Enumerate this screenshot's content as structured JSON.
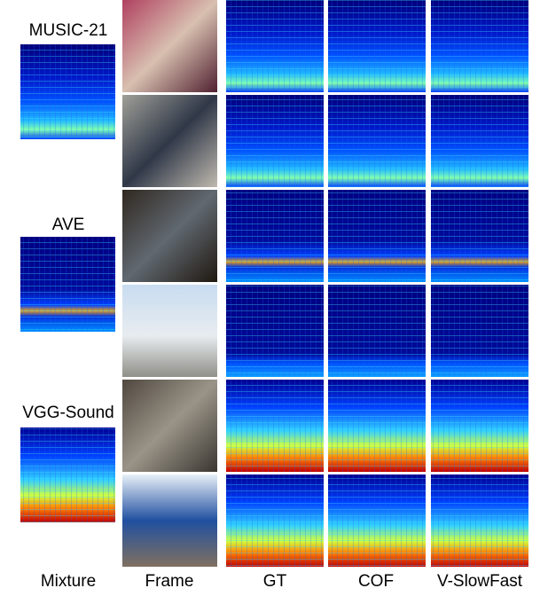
{
  "figure": {
    "datasets": [
      "MUSIC-21",
      "AVE",
      "VGG-Sound"
    ],
    "columns": [
      "Mixture",
      "Frame",
      "GT",
      "COF",
      "V-SlowFast"
    ]
  }
}
